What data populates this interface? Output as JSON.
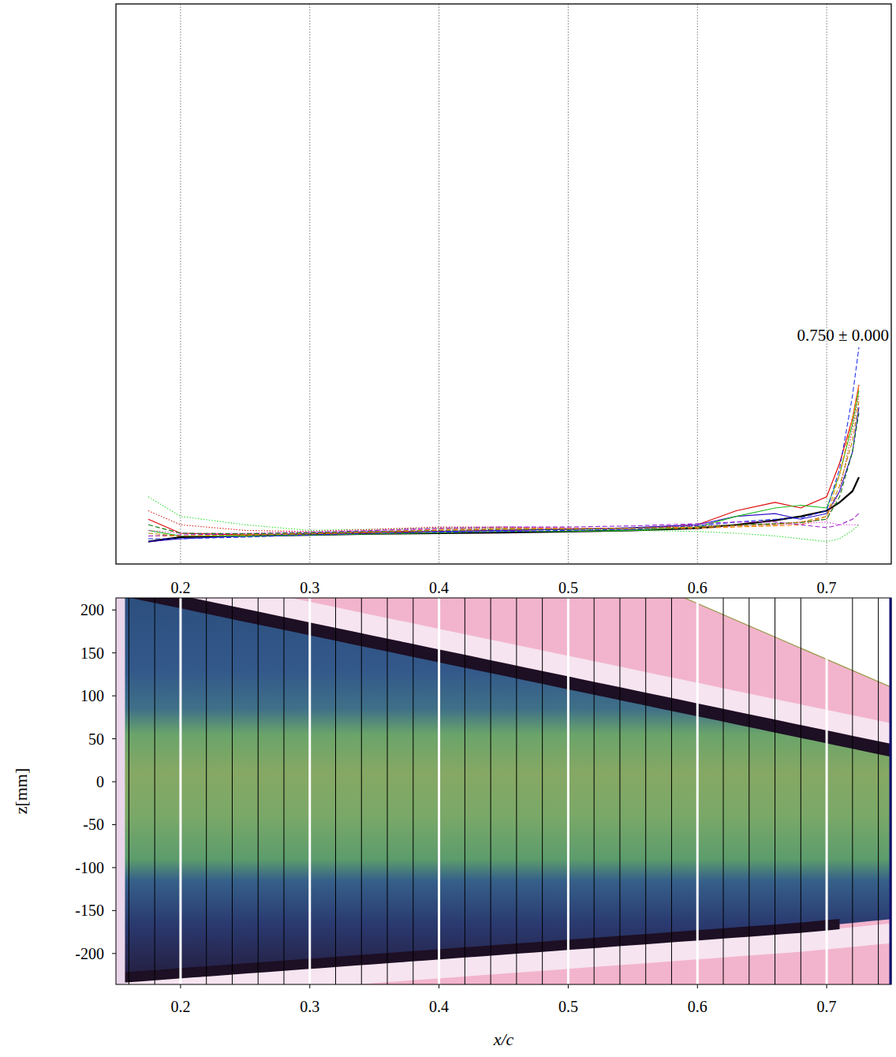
{
  "chart_data": [
    {
      "type": "line",
      "xlim": [
        0.15,
        0.75
      ],
      "ylim": [
        0,
        1
      ],
      "xticks": [
        0.2,
        0.3,
        0.4,
        0.5,
        0.6,
        0.7
      ],
      "grid": true,
      "tick_labels": "x",
      "x": [
        0.175,
        0.2,
        0.25,
        0.3,
        0.35,
        0.4,
        0.45,
        0.5,
        0.55,
        0.6,
        0.63,
        0.66,
        0.68,
        0.7,
        0.71,
        0.72,
        0.725
      ],
      "series": [
        {
          "color": "#000000",
          "line_style": "solid",
          "values": [
            0.04,
            0.048,
            0.05,
            0.052,
            0.054,
            0.055,
            0.056,
            0.058,
            0.06,
            0.064,
            0.07,
            0.078,
            0.085,
            0.095,
            0.11,
            0.13,
            0.155
          ]
        },
        {
          "color": "#33dd33",
          "line_style": "dotted",
          "values": [
            0.12,
            0.085,
            0.07,
            0.06,
            0.062,
            0.064,
            0.064,
            0.062,
            0.06,
            0.058,
            0.055,
            0.05,
            0.045,
            0.04,
            0.045,
            0.06,
            0.07
          ]
        },
        {
          "color": "#dd2222",
          "line_style": "dotted",
          "values": [
            0.095,
            0.07,
            0.06,
            0.058,
            0.062,
            0.066,
            0.066,
            0.064,
            0.064,
            0.068,
            0.07,
            0.072,
            0.075,
            0.08,
            0.13,
            0.24,
            0.3
          ]
        },
        {
          "color": "#dd0000",
          "line_style": "solid",
          "values": [
            0.08,
            0.055,
            0.052,
            0.054,
            0.056,
            0.058,
            0.06,
            0.062,
            0.064,
            0.07,
            0.095,
            0.11,
            0.1,
            0.12,
            0.18,
            0.26,
            0.32
          ]
        },
        {
          "color": "#3311cc",
          "line_style": "solid",
          "values": [
            0.04,
            0.045,
            0.05,
            0.055,
            0.058,
            0.058,
            0.06,
            0.062,
            0.065,
            0.07,
            0.085,
            0.09,
            0.08,
            0.09,
            0.13,
            0.2,
            0.28
          ]
        },
        {
          "color": "#22bb22",
          "line_style": "solid",
          "values": [
            0.06,
            0.05,
            0.05,
            0.052,
            0.054,
            0.056,
            0.058,
            0.058,
            0.06,
            0.066,
            0.085,
            0.1,
            0.105,
            0.1,
            0.16,
            0.25,
            0.31
          ]
        },
        {
          "color": "#ff8800",
          "line_style": "dashed",
          "values": [
            0.05,
            0.05,
            0.052,
            0.055,
            0.058,
            0.062,
            0.064,
            0.064,
            0.064,
            0.064,
            0.066,
            0.068,
            0.07,
            0.085,
            0.16,
            0.26,
            0.32
          ]
        },
        {
          "color": "#2233ee",
          "line_style": "dashed",
          "values": [
            0.045,
            0.045,
            0.048,
            0.052,
            0.055,
            0.057,
            0.058,
            0.06,
            0.062,
            0.068,
            0.075,
            0.08,
            0.082,
            0.095,
            0.17,
            0.3,
            0.387
          ]
        },
        {
          "color": "#9922cc",
          "line_style": "dashed",
          "values": [
            0.05,
            0.052,
            0.054,
            0.056,
            0.06,
            0.064,
            0.066,
            0.066,
            0.068,
            0.072,
            0.075,
            0.075,
            0.07,
            0.065,
            0.07,
            0.08,
            0.09
          ]
        },
        {
          "color": "#ee44ee",
          "line_style": "dotted",
          "values": [
            0.06,
            0.055,
            0.055,
            0.058,
            0.06,
            0.062,
            0.063,
            0.064,
            0.064,
            0.066,
            0.068,
            0.07,
            0.072,
            0.075,
            0.07,
            0.07,
            0.07
          ]
        },
        {
          "color": "#117711",
          "line_style": "dashed",
          "values": [
            0.07,
            0.055,
            0.054,
            0.056,
            0.058,
            0.06,
            0.062,
            0.062,
            0.064,
            0.066,
            0.07,
            0.072,
            0.074,
            0.08,
            0.12,
            0.2,
            0.27
          ]
        },
        {
          "color": "#bb8800",
          "line_style": "dashed",
          "values": [
            0.055,
            0.05,
            0.052,
            0.054,
            0.057,
            0.06,
            0.062,
            0.063,
            0.064,
            0.066,
            0.068,
            0.07,
            0.075,
            0.085,
            0.14,
            0.22,
            0.29
          ]
        }
      ],
      "annotations": [
        "0.750 ± 0.000"
      ]
    },
    {
      "type": "image",
      "xlabel": "x/c",
      "ylabel": "z[mm]",
      "xlim": [
        0.15,
        0.75
      ],
      "ylim": [
        -236,
        214
      ],
      "xticks": [
        0.2,
        0.3,
        0.4,
        0.5,
        0.6,
        0.7
      ],
      "yticks": [
        -200,
        -150,
        -100,
        -50,
        0,
        50,
        100,
        150,
        200
      ],
      "stations": [
        0.16,
        0.18,
        0.22,
        0.24,
        0.26,
        0.28,
        0.32,
        0.34,
        0.36,
        0.38,
        0.42,
        0.44,
        0.46,
        0.48,
        0.52,
        0.54,
        0.56,
        0.58,
        0.62,
        0.64,
        0.66,
        0.68,
        0.72,
        0.74
      ],
      "major_stations": [
        0.2,
        0.3,
        0.4,
        0.5,
        0.6,
        0.7
      ]
    }
  ]
}
